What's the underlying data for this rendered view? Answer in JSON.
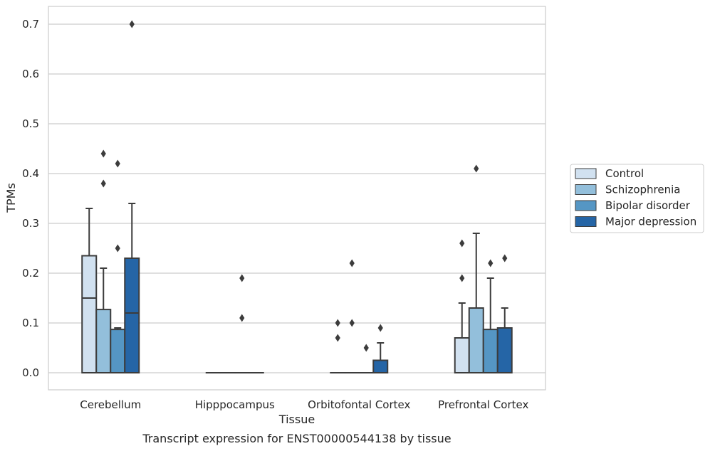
{
  "caption": "Transcript expression for ENST00000544138 by tissue",
  "chart_data": {
    "type": "boxplot",
    "xlabel": "Tissue",
    "ylabel": "TPMs",
    "ylim": [
      -0.034,
      0.736
    ],
    "yticks": [
      0.0,
      0.1,
      0.2,
      0.3,
      0.4,
      0.5,
      0.6,
      0.7
    ],
    "ytick_labels": [
      "0.0",
      "0.1",
      "0.2",
      "0.3",
      "0.4",
      "0.5",
      "0.6",
      "0.7"
    ],
    "grid": "horizontal",
    "legend_position": "right",
    "categories": [
      "Cerebellum",
      "Hipppocampus",
      "Orbitofontal Cortex",
      "Prefrontal Cortex"
    ],
    "series": [
      {
        "name": "Control",
        "color": "#d1e1f0",
        "boxes": [
          {
            "q1": 0.0,
            "median": 0.15,
            "q3": 0.235,
            "whisker_low": 0.0,
            "whisker_high": 0.33,
            "outliers": []
          },
          {
            "q1": 0.0,
            "median": 0.0,
            "q3": 0.0,
            "whisker_low": 0.0,
            "whisker_high": 0.0,
            "outliers": []
          },
          {
            "q1": 0.0,
            "median": 0.0,
            "q3": 0.0,
            "whisker_low": 0.0,
            "whisker_high": 0.0,
            "outliers": [
              0.07,
              0.1
            ]
          },
          {
            "q1": 0.0,
            "median": 0.0,
            "q3": 0.07,
            "whisker_low": 0.0,
            "whisker_high": 0.14,
            "outliers": [
              0.19,
              0.26
            ]
          }
        ]
      },
      {
        "name": "Schizophrenia",
        "color": "#93bfdb",
        "boxes": [
          {
            "q1": 0.0,
            "median": 0.0,
            "q3": 0.127,
            "whisker_low": 0.0,
            "whisker_high": 0.21,
            "outliers": [
              0.38,
              0.44
            ]
          },
          {
            "q1": 0.0,
            "median": 0.0,
            "q3": 0.0,
            "whisker_low": 0.0,
            "whisker_high": 0.0,
            "outliers": []
          },
          {
            "q1": 0.0,
            "median": 0.0,
            "q3": 0.0,
            "whisker_low": 0.0,
            "whisker_high": 0.0,
            "outliers": [
              0.1,
              0.22
            ]
          },
          {
            "q1": 0.0,
            "median": 0.0,
            "q3": 0.13,
            "whisker_low": 0.0,
            "whisker_high": 0.28,
            "outliers": [
              0.41
            ]
          }
        ]
      },
      {
        "name": "Bipolar disorder",
        "color": "#5596c4",
        "boxes": [
          {
            "q1": 0.0,
            "median": 0.0,
            "q3": 0.087,
            "whisker_low": 0.0,
            "whisker_high": 0.09,
            "outliers": [
              0.25,
              0.42
            ]
          },
          {
            "q1": 0.0,
            "median": 0.0,
            "q3": 0.0,
            "whisker_low": 0.0,
            "whisker_high": 0.0,
            "outliers": [
              0.11,
              0.19
            ]
          },
          {
            "q1": 0.0,
            "median": 0.0,
            "q3": 0.0,
            "whisker_low": 0.0,
            "whisker_high": 0.0,
            "outliers": [
              0.05
            ]
          },
          {
            "q1": 0.0,
            "median": 0.0,
            "q3": 0.087,
            "whisker_low": 0.0,
            "whisker_high": 0.19,
            "outliers": [
              0.22
            ]
          }
        ]
      },
      {
        "name": "Major depression",
        "color": "#2565a6",
        "boxes": [
          {
            "q1": 0.0,
            "median": 0.12,
            "q3": 0.23,
            "whisker_low": 0.0,
            "whisker_high": 0.34,
            "outliers": [
              0.7
            ]
          },
          {
            "q1": 0.0,
            "median": 0.0,
            "q3": 0.0,
            "whisker_low": 0.0,
            "whisker_high": 0.0,
            "outliers": []
          },
          {
            "q1": 0.0,
            "median": 0.0,
            "q3": 0.025,
            "whisker_low": 0.0,
            "whisker_high": 0.06,
            "outliers": [
              0.09
            ]
          },
          {
            "q1": 0.0,
            "median": 0.0,
            "q3": 0.09,
            "whisker_low": 0.0,
            "whisker_high": 0.13,
            "outliers": [
              0.23
            ]
          }
        ]
      }
    ]
  }
}
